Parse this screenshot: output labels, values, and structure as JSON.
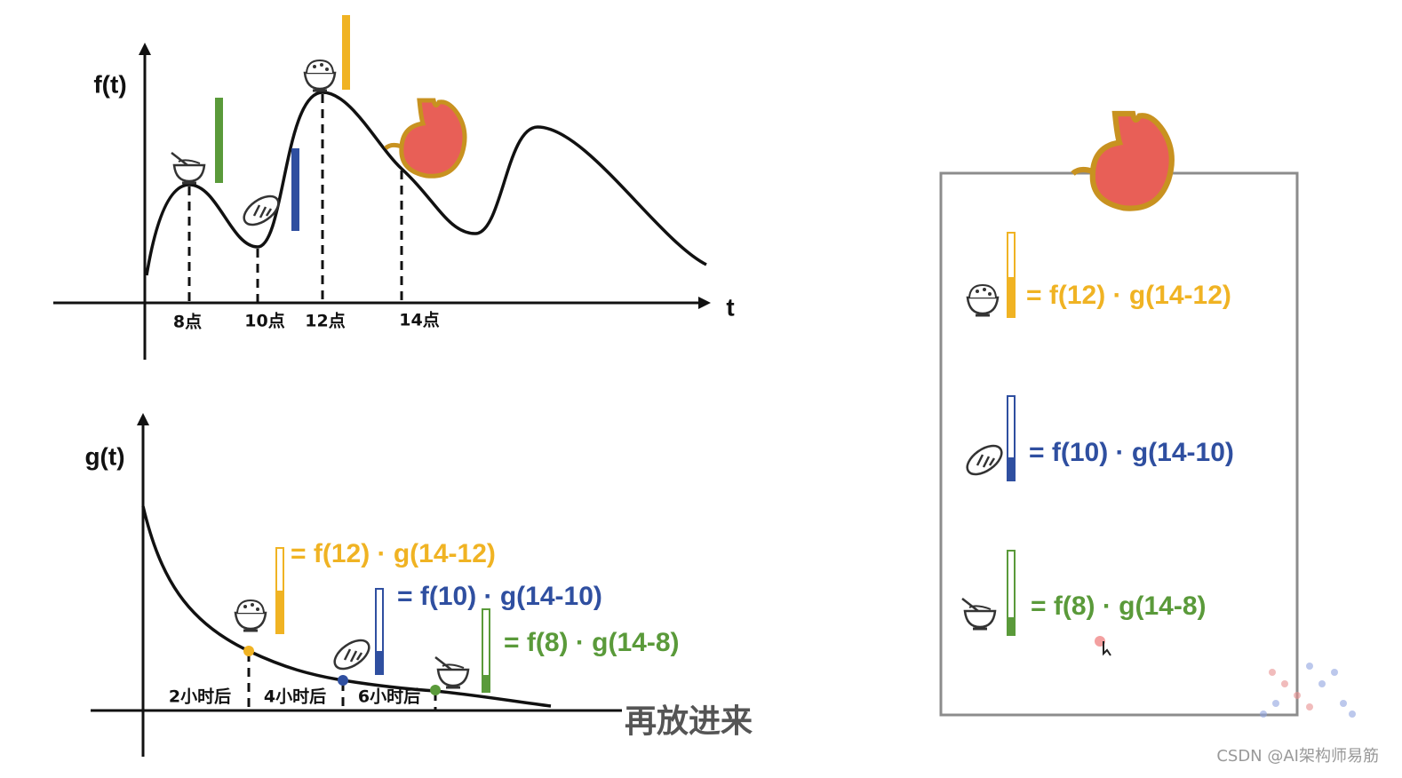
{
  "top_chart": {
    "y_label": "f(t)",
    "x_label": "t",
    "ticks": [
      "8点",
      "10点",
      "12点",
      "14点"
    ]
  },
  "bottom_chart": {
    "y_label": "g(t)",
    "ticks": [
      "2小时后",
      "4小时后",
      "6小时后"
    ],
    "formulas": [
      "= f(12) · g(14-12)",
      "= f(10) · g(14-10)",
      "=  f(8) · g(14-8)"
    ]
  },
  "panel": {
    "formulas": [
      "= f(12) · g(14-12)",
      "= f(10) · g(14-10)",
      "=  f(8) · g(14-8)"
    ]
  },
  "subtitle": "再放进来",
  "watermark": "CSDN @AI架构师易筋"
}
